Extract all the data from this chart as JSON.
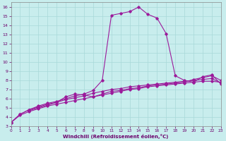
{
  "xlabel": "Windchill (Refroidissement éolien,°C)",
  "xlim": [
    0,
    23
  ],
  "ylim": [
    3,
    16.5
  ],
  "xticks": [
    0,
    1,
    2,
    3,
    4,
    5,
    6,
    7,
    8,
    9,
    10,
    11,
    12,
    13,
    14,
    15,
    16,
    17,
    18,
    19,
    20,
    21,
    22,
    23
  ],
  "yticks": [
    3,
    4,
    5,
    6,
    7,
    8,
    9,
    10,
    11,
    12,
    13,
    14,
    15,
    16
  ],
  "background_color": "#c8eded",
  "line_color": "#9b1a9b",
  "grid_color": "#a8d8d8",
  "curves": {
    "line1_x": [
      0,
      1,
      2,
      3,
      4,
      5,
      6,
      7,
      8,
      9,
      10,
      11,
      12,
      13,
      14,
      15,
      16,
      17,
      18,
      19,
      20,
      21,
      22,
      23
    ],
    "line1_y": [
      3.4,
      4.2,
      4.6,
      4.9,
      5.2,
      5.4,
      5.6,
      5.8,
      6.0,
      6.2,
      6.4,
      6.6,
      6.8,
      7.0,
      7.1,
      7.3,
      7.4,
      7.5,
      7.6,
      7.7,
      7.8,
      7.9,
      7.9,
      7.8
    ],
    "line2_x": [
      0,
      1,
      2,
      3,
      4,
      5,
      6,
      7,
      8,
      9,
      10,
      11,
      12,
      13,
      14,
      15,
      16,
      17,
      18,
      19,
      20,
      21,
      22,
      23
    ],
    "line2_y": [
      3.4,
      4.3,
      4.8,
      5.1,
      5.4,
      5.6,
      5.9,
      6.1,
      6.3,
      6.6,
      6.8,
      7.0,
      7.1,
      7.3,
      7.4,
      7.5,
      7.6,
      7.7,
      7.8,
      7.9,
      8.0,
      8.1,
      8.2,
      7.7
    ],
    "line3_x": [
      0,
      1,
      2,
      3,
      4,
      5,
      6,
      7,
      8,
      9,
      10,
      11,
      12,
      13,
      14,
      15,
      16,
      17,
      18,
      19,
      20,
      21,
      22,
      23
    ],
    "line3_y": [
      3.4,
      4.3,
      4.8,
      5.2,
      5.5,
      5.7,
      6.0,
      6.3,
      6.5,
      6.9,
      8.0,
      15.1,
      15.3,
      15.5,
      16.0,
      15.2,
      14.8,
      13.1,
      8.5,
      8.0,
      7.8,
      8.4,
      8.6,
      7.6
    ],
    "line4_x": [
      2,
      3,
      4,
      5,
      6,
      7,
      8,
      9,
      10,
      11,
      12,
      13,
      14,
      15,
      16,
      17,
      18,
      19,
      20,
      21,
      22,
      23
    ],
    "line4_y": [
      4.7,
      5.0,
      5.3,
      5.6,
      6.2,
      6.5,
      6.4,
      6.2,
      6.5,
      6.8,
      6.9,
      7.1,
      7.2,
      7.4,
      7.5,
      7.6,
      7.7,
      7.8,
      8.1,
      8.3,
      8.5,
      8.0
    ]
  }
}
